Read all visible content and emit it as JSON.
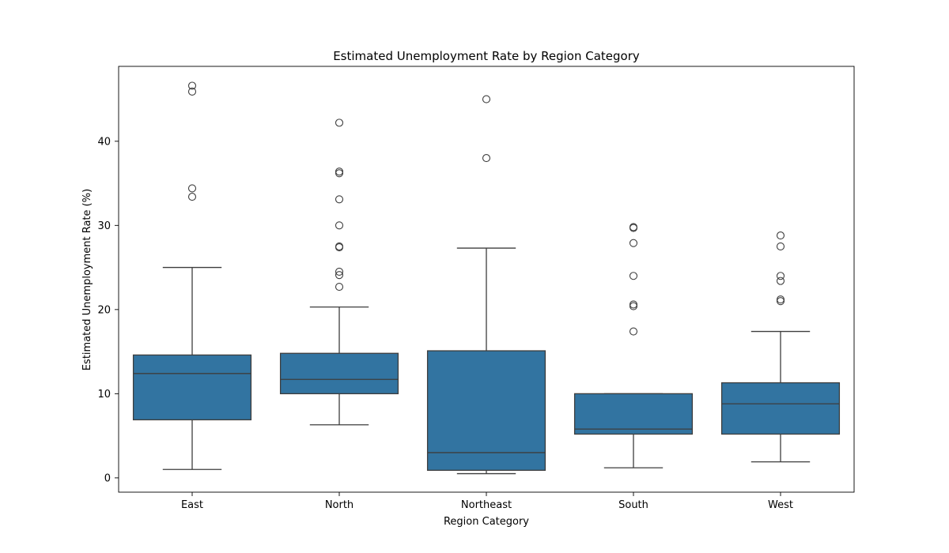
{
  "chart_data": {
    "type": "boxplot",
    "title": "Estimated Unemployment Rate by Region Category",
    "xlabel": "Region Category",
    "ylabel": "Estimated Unemployment Rate (%)",
    "ylim": [
      -1.7,
      48.9
    ],
    "yticks": [
      0,
      10,
      20,
      30,
      40
    ],
    "grid": false,
    "colors": {
      "box": "#3274a1",
      "line": "#3d3d3d",
      "outlier_edge": "#3d3d3d"
    },
    "categories": [
      "East",
      "North",
      "Northeast",
      "South",
      "West"
    ],
    "boxes": [
      {
        "category": "East",
        "whisker_low": 1.0,
        "q1": 6.9,
        "median": 12.4,
        "q3": 14.6,
        "whisker_high": 25.0,
        "outliers": [
          33.4,
          34.4,
          45.9,
          46.6
        ]
      },
      {
        "category": "North",
        "whisker_low": 6.3,
        "q1": 10.0,
        "median": 11.7,
        "q3": 14.8,
        "whisker_high": 20.3,
        "outliers": [
          22.7,
          24.1,
          24.5,
          27.4,
          27.5,
          30.0,
          33.1,
          36.2,
          36.4,
          42.2
        ]
      },
      {
        "category": "Northeast",
        "whisker_low": 0.5,
        "q1": 0.9,
        "median": 3.0,
        "q3": 15.1,
        "whisker_high": 27.3,
        "outliers": [
          38.0,
          45.0
        ]
      },
      {
        "category": "South",
        "whisker_low": 1.2,
        "q1": 5.2,
        "median": 5.8,
        "q3": 10.0,
        "whisker_high": 10.0,
        "outliers": [
          17.4,
          20.4,
          20.6,
          24.0,
          27.9,
          29.7,
          29.8
        ]
      },
      {
        "category": "West",
        "whisker_low": 1.9,
        "q1": 5.2,
        "median": 8.8,
        "q3": 11.3,
        "whisker_high": 17.4,
        "outliers": [
          21.0,
          21.2,
          23.4,
          24.0,
          27.5,
          28.8
        ]
      }
    ]
  }
}
